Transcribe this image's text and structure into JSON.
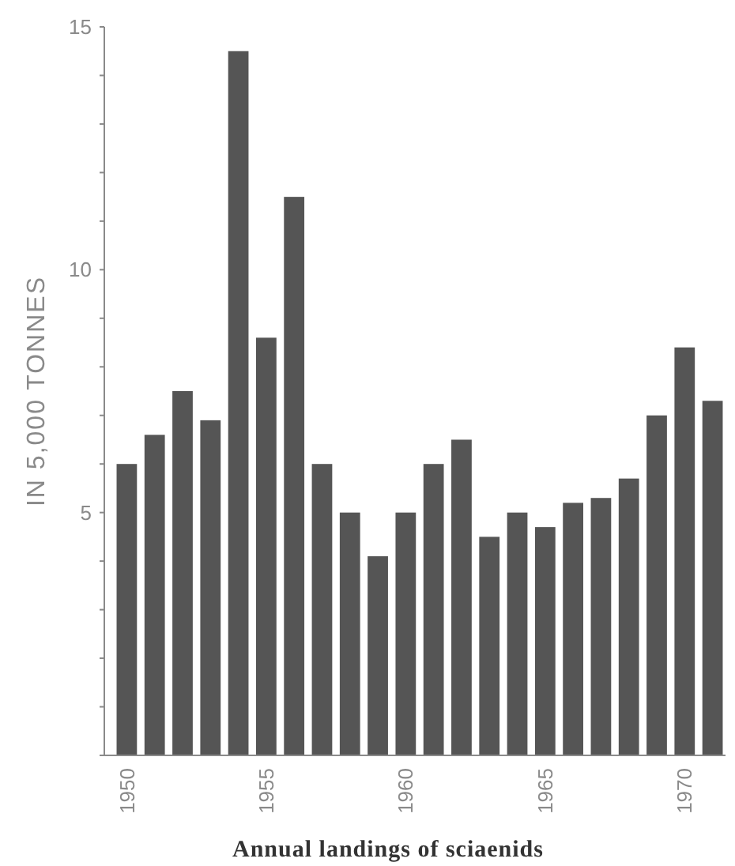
{
  "chart_data": {
    "type": "bar",
    "title": "Annual landings of sciaenids",
    "ylabel": "IN 5,000 TONNES",
    "categories": [
      "1950",
      null,
      null,
      null,
      null,
      "1955",
      null,
      null,
      null,
      null,
      "1960",
      null,
      null,
      null,
      null,
      "1965",
      null,
      null,
      null,
      null,
      "1970",
      null
    ],
    "values": [
      6.0,
      6.6,
      7.5,
      6.9,
      14.5,
      8.6,
      11.5,
      6.0,
      5.0,
      4.1,
      5.0,
      6.0,
      6.5,
      4.5,
      5.0,
      4.7,
      5.2,
      5.3,
      5.7,
      7.0,
      8.4,
      7.3
    ],
    "color": "#555555",
    "ylim": [
      0,
      15
    ],
    "yticks": [
      {
        "value": 0,
        "label": null
      },
      {
        "value": 1,
        "label": null
      },
      {
        "value": 2,
        "label": null
      },
      {
        "value": 3,
        "label": null
      },
      {
        "value": 4,
        "label": null
      },
      5,
      {
        "value": 6,
        "label": null
      },
      {
        "value": 7,
        "label": null
      },
      {
        "value": 8,
        "label": null
      },
      {
        "value": 9,
        "label": null
      },
      10,
      {
        "value": 11,
        "label": null
      },
      {
        "value": 12,
        "label": null
      },
      {
        "value": 13,
        "label": null
      },
      {
        "value": 14,
        "label": null
      },
      15
    ],
    "grid": false
  }
}
